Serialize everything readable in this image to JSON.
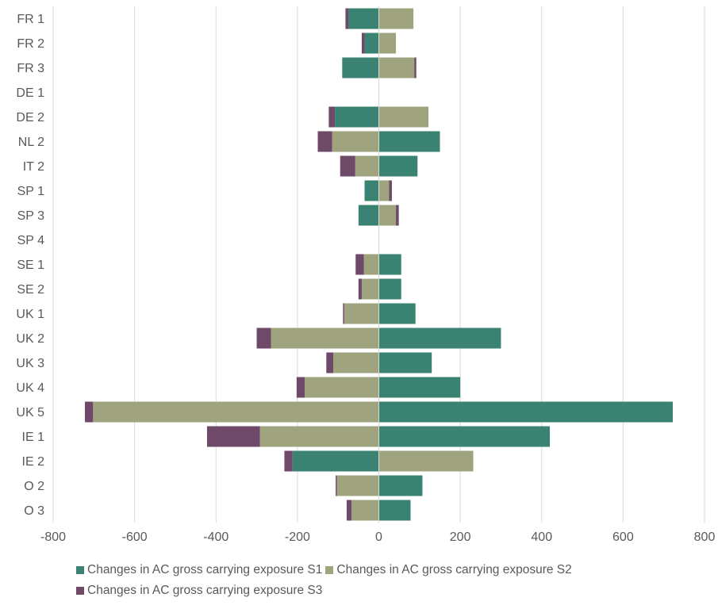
{
  "chart_data": {
    "type": "bar",
    "orientation": "horizontal",
    "stacked": true,
    "categories": [
      "FR 1",
      "FR 2",
      "FR 3",
      "DE 1",
      "DE 2",
      "NL 2",
      "IT 2",
      "SP 1",
      "SP 3",
      "SP 4",
      "SE 1",
      "SE 2",
      "UK 1",
      "UK 2",
      "UK 3",
      "UK 4",
      "UK 5",
      "IE 1",
      "IE 2",
      "O 2",
      "O 3"
    ],
    "series": [
      {
        "name": "Changes in AC gross carrying exposure S1",
        "color": "#3a8272",
        "values": [
          -75,
          -35,
          -90,
          0,
          -108,
          150,
          95,
          -35,
          -50,
          0,
          55,
          55,
          90,
          300,
          130,
          200,
          722,
          420,
          -212,
          107,
          78
        ]
      },
      {
        "name": "Changes in AC gross carrying exposure S2",
        "color": "#9fa47e",
        "values": [
          85,
          42,
          87,
          0,
          122,
          -115,
          -58,
          25,
          42,
          0,
          -37,
          -42,
          -85,
          -265,
          -112,
          -182,
          -702,
          -292,
          232,
          -103,
          -67
        ]
      },
      {
        "name": "Changes in AC gross carrying exposure S3",
        "color": "#6e4a68",
        "values": [
          -7,
          -7,
          5,
          0,
          -15,
          -35,
          -37,
          7,
          7,
          0,
          -20,
          -8,
          -3,
          -35,
          -17,
          -20,
          -20,
          -130,
          -20,
          -3,
          -12
        ]
      }
    ],
    "xlim": [
      -800,
      800
    ],
    "xticks": [
      "-800",
      "-600",
      "-400",
      "-200",
      "0",
      "200",
      "400",
      "600",
      "800"
    ],
    "xtick_values": [
      -800,
      -600,
      -400,
      -200,
      0,
      200,
      400,
      600,
      800
    ],
    "grid": "vertical",
    "legend_position": "bottom"
  }
}
